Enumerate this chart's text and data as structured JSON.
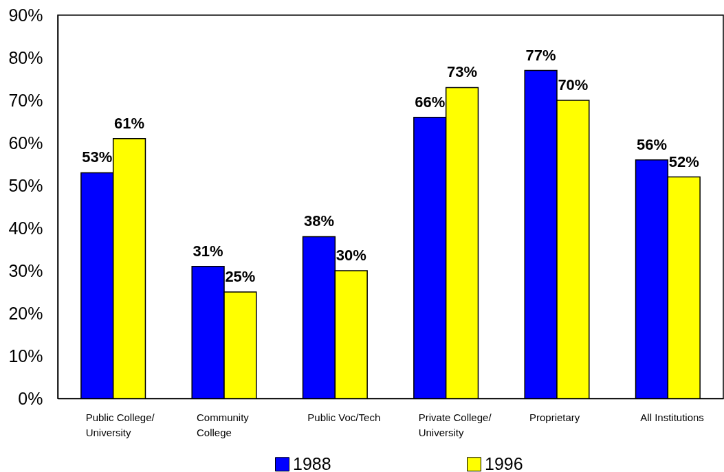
{
  "chart_data": {
    "type": "bar",
    "categories": [
      "Public College/\nUniversity",
      "Community\nCollege",
      "Public Voc/Tech",
      "Private College/\nUniversity",
      "Proprietary",
      "All Institutions"
    ],
    "series": [
      {
        "name": "1988",
        "color": "#0000ff",
        "values": [
          53,
          31,
          38,
          66,
          77,
          56
        ],
        "value_labels": [
          "53%",
          "31%",
          "38%",
          "66%",
          "77%",
          "56%"
        ]
      },
      {
        "name": "1996",
        "color": "#ffff00",
        "values": [
          61,
          25,
          30,
          73,
          70,
          52
        ],
        "value_labels": [
          "61%",
          "25%",
          "30%",
          "73%",
          "70%",
          "52%"
        ]
      }
    ],
    "ylim": [
      0,
      90
    ],
    "yticks": [
      {
        "value": 0,
        "label": "0%"
      },
      {
        "value": 10,
        "label": "10%"
      },
      {
        "value": 20,
        "label": "20%"
      },
      {
        "value": 30,
        "label": "30%"
      },
      {
        "value": 40,
        "label": "40%"
      },
      {
        "value": 50,
        "label": "50%"
      },
      {
        "value": 60,
        "label": "60%"
      },
      {
        "value": 70,
        "label": "70%"
      },
      {
        "value": 80,
        "label": "80%"
      },
      {
        "value": 90,
        "label": "90%"
      }
    ],
    "legend": "bottom"
  }
}
